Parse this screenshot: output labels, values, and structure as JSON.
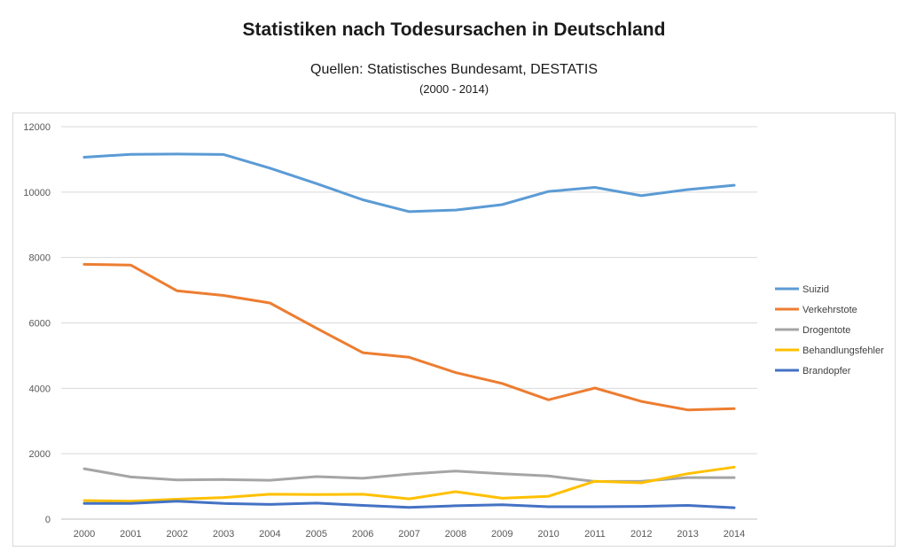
{
  "chart_data": {
    "type": "line",
    "title": "Statistiken nach Todesursachen in Deutschland",
    "subtitle": "Quellen: Statistisches Bundesamt, DESTATIS",
    "period": "(2000 - 2014)",
    "x": [
      "2000",
      "2001",
      "2002",
      "2003",
      "2004",
      "2005",
      "2006",
      "2007",
      "2008",
      "2009",
      "2010",
      "2011",
      "2012",
      "2013",
      "2014"
    ],
    "ylim": [
      0,
      12000
    ],
    "yticks": [
      0,
      2000,
      4000,
      6000,
      8000,
      10000,
      12000
    ],
    "grid": true,
    "legend_position": "right",
    "series": [
      {
        "name": "Suizid",
        "color": "#5b9bd5",
        "values": [
          11065,
          11156,
          11163,
          11150,
          10733,
          10260,
          9765,
          9402,
          9451,
          9616,
          10021,
          10144,
          9890,
          10076,
          10209
        ]
      },
      {
        "name": "Verkehrstote",
        "color": "#ed7d31",
        "values": [
          7790,
          7770,
          6980,
          6840,
          6610,
          5840,
          5090,
          4950,
          4480,
          4150,
          3650,
          4010,
          3600,
          3340,
          3380
        ]
      },
      {
        "name": "Drogentote",
        "color": "#a5a5a5",
        "values": [
          1540,
          1290,
          1200,
          1210,
          1190,
          1300,
          1250,
          1380,
          1470,
          1390,
          1320,
          1150,
          1160,
          1270,
          1270
        ]
      },
      {
        "name": "Behandlungsfehler",
        "color": "#ffc000",
        "values": [
          570,
          550,
          610,
          660,
          760,
          750,
          760,
          620,
          840,
          640,
          700,
          1160,
          1110,
          1390,
          1590
        ]
      },
      {
        "name": "Brandopfer",
        "color": "#4472c4",
        "values": [
          480,
          480,
          550,
          480,
          450,
          490,
          420,
          360,
          410,
          440,
          380,
          380,
          390,
          420,
          350
        ]
      }
    ]
  }
}
